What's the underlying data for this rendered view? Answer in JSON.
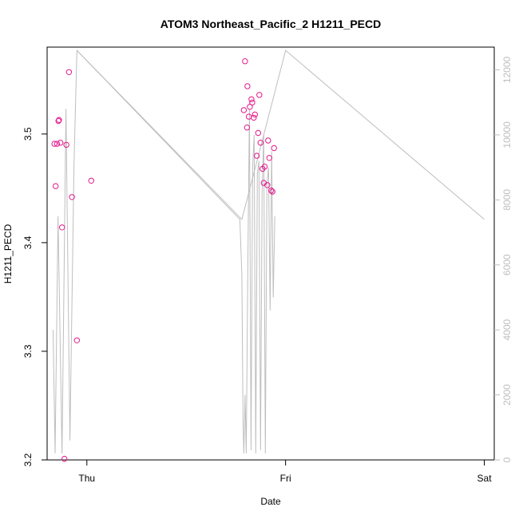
{
  "chart_data": {
    "type": "scatter",
    "title": "ATOM3 Northeast_Pacific_2 H1211_PECD",
    "xlabel": "Date",
    "ylabel": "H1211_PECD",
    "x_tick_labels": [
      "Thu",
      "Fri",
      "Sat"
    ],
    "xlim_days": [
      -0.2,
      2.05
    ],
    "ylim": [
      3.2,
      3.58
    ],
    "y_ticks": [
      3.2,
      3.3,
      3.4,
      3.5
    ],
    "y2lim": [
      0,
      12700
    ],
    "y2_ticks": [
      0,
      2000,
      4000,
      6000,
      8000,
      10000,
      12000
    ],
    "grid": false,
    "series": [
      {
        "type": "scatter",
        "color": "#e31a8c",
        "axis": "left",
        "x_days": [
          -0.163,
          -0.157,
          -0.15,
          -0.143,
          -0.14,
          -0.133,
          -0.125,
          -0.113,
          -0.103,
          -0.09,
          -0.075,
          -0.05,
          0.022,
          0.79,
          0.796,
          0.806,
          0.808,
          0.815,
          0.82,
          0.828,
          0.832,
          0.84,
          0.846,
          0.855,
          0.862,
          0.868,
          0.874,
          0.884,
          0.89,
          0.895,
          0.908,
          0.912,
          0.918,
          0.928,
          0.934,
          0.942
        ],
        "y": [
          3.491,
          3.452,
          3.491,
          3.512,
          3.513,
          3.492,
          3.414,
          3.201,
          3.49,
          3.557,
          3.442,
          3.31,
          3.457,
          3.522,
          3.567,
          3.506,
          3.544,
          3.516,
          3.525,
          3.532,
          3.529,
          3.515,
          3.518,
          3.48,
          3.501,
          3.536,
          3.492,
          3.468,
          3.455,
          3.47,
          3.453,
          3.494,
          3.478,
          3.448,
          3.447,
          3.487
        ]
      },
      {
        "type": "line",
        "color": "#bebebe",
        "axis": "right",
        "x_days": [
          -0.17,
          -0.16,
          -0.145,
          -0.125,
          -0.105,
          -0.085,
          -0.065,
          -0.05,
          0.77,
          0.78,
          0.786,
          0.79,
          0.796,
          0.802,
          0.81,
          0.818,
          0.826,
          0.834,
          0.842,
          0.85,
          0.858,
          0.866,
          0.874,
          0.882,
          0.89,
          0.898,
          0.906,
          0.914,
          0.922,
          0.93,
          0.938,
          0.946
        ],
        "y2": [
          4000,
          200,
          7500,
          200,
          10800,
          600,
          9000,
          12600,
          7400,
          5700,
          1200,
          200,
          2000,
          200,
          6000,
          10800,
          300,
          9000,
          10000,
          200,
          8800,
          9200,
          300,
          8300,
          10000,
          200,
          8500,
          9000,
          4600,
          9500,
          5000,
          7500
        ]
      },
      {
        "type": "line",
        "color": "#bebebe",
        "axis": "right",
        "x_days": [
          -0.05,
          0.78,
          1.0,
          2.0,
          2.0,
          2.0
        ],
        "y2": [
          12600,
          7400,
          12600,
          7400,
          7400,
          7400
        ]
      }
    ]
  }
}
